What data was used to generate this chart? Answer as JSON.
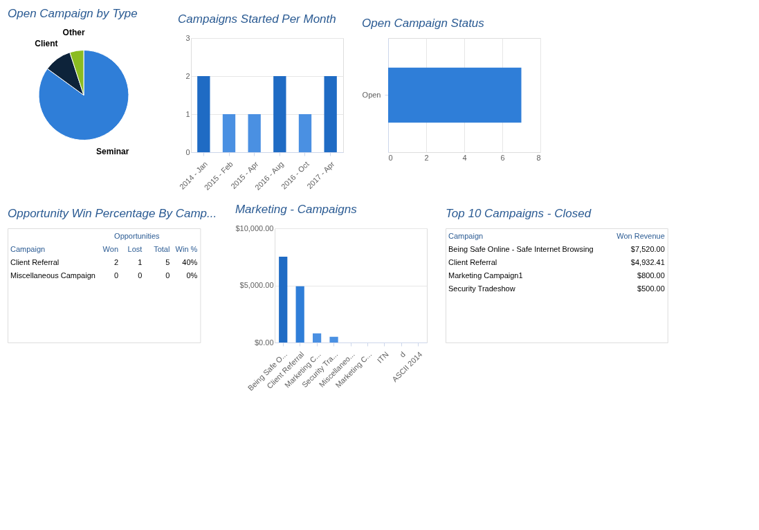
{
  "chart_data": [
    {
      "type": "pie",
      "title": "Open Campaign by Type",
      "categories": [
        "Seminar",
        "Client",
        "Other"
      ],
      "values": [
        85,
        10,
        5
      ],
      "colors": [
        "#2f7ed8",
        "#0d233a",
        "#8bbc21"
      ]
    },
    {
      "type": "bar",
      "title": "Campaigns Started Per Month",
      "categories": [
        "2014 - Jan",
        "2015 - Feb",
        "2015 - Apr",
        "2016 - Aug",
        "2016 - Oct",
        "2017 - Apr"
      ],
      "values": [
        2,
        1,
        1,
        2,
        1,
        2
      ],
      "colors": [
        "#1f6bc4",
        "#4a90e2",
        "#4a90e2",
        "#1f6bc4",
        "#4a90e2",
        "#1f6bc4"
      ],
      "ylim": [
        0,
        3
      ],
      "yticks": [
        0,
        1,
        2,
        3
      ],
      "grid": "y"
    },
    {
      "type": "bar",
      "title": "Open Campaign Status",
      "orientation": "horizontal",
      "categories": [
        "Open"
      ],
      "values": [
        7
      ],
      "color": "#2f7ed8",
      "xlim": [
        0,
        8
      ],
      "xticks": [
        0,
        2,
        4,
        6,
        8
      ],
      "grid": "x"
    },
    {
      "type": "other",
      "title": "Opportunity Win Percentage By Camp...",
      "annotations": [
        "Opportunities"
      ],
      "categories": [
        "Campaign",
        "Won",
        "Lost",
        "Total",
        "Win %"
      ],
      "cell_labels": [
        [
          "Client Referral",
          "2",
          "1",
          "5",
          "40%"
        ],
        [
          "Miscellaneous Campaign",
          "0",
          "0",
          "0",
          "0%"
        ]
      ]
    },
    {
      "type": "bar",
      "title": "Marketing - Campaigns",
      "categories": [
        "Being Safe O...",
        "Client Referral",
        "Marketing C...",
        "Security Tra...",
        "Miscellaneo...",
        "Marketing C...",
        "ITN",
        "d",
        "ASCII 2014"
      ],
      "values": [
        7520,
        4930,
        800,
        500,
        0,
        0,
        0,
        0,
        0
      ],
      "colors": [
        "#1f6bc4",
        "#2f7ed8",
        "#4a90e2",
        "#4a90e2",
        "#4a90e2",
        "#4a90e2",
        "#4a90e2",
        "#4a90e2",
        "#4a90e2"
      ],
      "ylim": [
        0,
        10000
      ],
      "yticks": [
        {
          "value": 0,
          "label": "$0.00"
        },
        {
          "value": 5000,
          "label": "$5,000.00"
        },
        {
          "value": 10000,
          "label": "$10,000.00"
        }
      ],
      "grid": "y"
    },
    {
      "type": "other",
      "title": "Top 10 Campaigns - Closed",
      "categories": [
        "Campaign",
        "Won Revenue"
      ],
      "cell_labels": [
        [
          "Being Safe Online - Safe Internet Browsing",
          "$7,520.00"
        ],
        [
          "Client Referral",
          "$4,932.41"
        ],
        [
          "Marketing Campaign1",
          "$800.00"
        ],
        [
          "Security Tradeshow",
          "$500.00"
        ]
      ]
    }
  ]
}
